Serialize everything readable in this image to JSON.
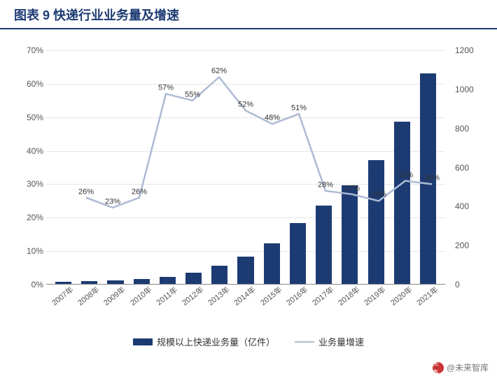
{
  "title": "图表 9  快递行业业务量及增速",
  "title_color": "#1d3b73",
  "title_border_color": "#1d3b73",
  "watermark": {
    "prefix": "头条",
    "author": "@未来智库"
  },
  "chart": {
    "type": "bar+line",
    "categories": [
      "2007年",
      "2008年",
      "2009年",
      "2010年",
      "2011年",
      "2012年",
      "2013年",
      "2014年",
      "2015年",
      "2016年",
      "2017年",
      "2018年",
      "2019年",
      "2020年",
      "2021年"
    ],
    "bar_series": {
      "name": "规模以上快递业务量（亿件）",
      "values": [
        12,
        15,
        19,
        24,
        37,
        57,
        92,
        140,
        207,
        313,
        401,
        507,
        635,
        833,
        1083
      ],
      "color": "#1d3b73"
    },
    "line_series": {
      "name": "业务量增速",
      "values": [
        null,
        0.26,
        0.23,
        0.26,
        0.57,
        0.55,
        0.62,
        0.52,
        0.48,
        0.51,
        0.28,
        0.27,
        0.25,
        0.31,
        0.3
      ],
      "labels": [
        null,
        "26%",
        "23%",
        "26%",
        "57%",
        "55%",
        "62%",
        "52%",
        "48%",
        "51%",
        "28%",
        "27%",
        "25%",
        "31%",
        "30%"
      ],
      "color": "#aebbd4",
      "line_width": 2.5
    },
    "y_left": {
      "min": 0,
      "max": 0.7,
      "step": 0.1,
      "format": "percent"
    },
    "y_right": {
      "min": 0,
      "max": 1200,
      "step": 200,
      "format": "number"
    },
    "grid_color": "#e6e6e6",
    "axis_font_size": 12,
    "x_label_font_size": 11,
    "data_label_font_size": 11
  }
}
